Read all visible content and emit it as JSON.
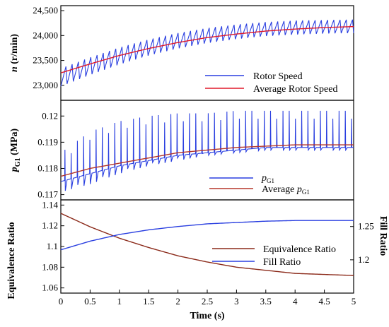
{
  "chart_data": [
    {
      "type": "line",
      "panel": "top",
      "ylabel": "n (r/min)",
      "ylabel_italic_part": "n",
      "ylabel_rest": " (r/min)",
      "ylim": [
        22700,
        24600
      ],
      "xlim": [
        0,
        5
      ],
      "yticks": [
        23000,
        23500,
        24000,
        24500
      ],
      "ytick_labels": [
        "23,000",
        "23,500",
        "24,000",
        "24,500"
      ],
      "legend_position": "lower-right",
      "series": [
        {
          "name": "Rotor Speed",
          "color": "#2a3fe0",
          "style": "oscillating",
          "cycles": 47,
          "x": [
            0,
            0.5,
            1,
            1.5,
            2,
            2.5,
            3,
            3.5,
            4,
            4.5,
            5
          ],
          "y_max": [
            23340,
            23560,
            23760,
            23920,
            24050,
            24150,
            24220,
            24270,
            24300,
            24310,
            24320
          ],
          "y_min": [
            22980,
            23210,
            23420,
            23600,
            23740,
            23850,
            23930,
            23990,
            24020,
            24040,
            24050
          ]
        },
        {
          "name": "Average Rotor Speed",
          "color": "#e0182a",
          "x": [
            0,
            0.5,
            1,
            1.5,
            2,
            2.5,
            3,
            3.5,
            4,
            4.5,
            5
          ],
          "y": [
            23250,
            23430,
            23600,
            23740,
            23860,
            23960,
            24030,
            24090,
            24130,
            24160,
            24180
          ]
        }
      ]
    },
    {
      "type": "line",
      "panel": "middle",
      "ylabel_italic_part": "p",
      "ylabel_sub": "G1",
      "ylabel_rest": " (MPa)",
      "ylim": [
        0.1168,
        0.1206
      ],
      "xlim": [
        0,
        5
      ],
      "yticks": [
        0.117,
        0.118,
        0.119,
        0.12
      ],
      "ytick_labels": [
        "0.117",
        "0.118",
        "0.119",
        "0.12"
      ],
      "legend_position": "lower-right",
      "series": [
        {
          "name_italic": "p",
          "name_sub": "G1",
          "color": "#2a3fe0",
          "style": "spiky",
          "cycles": 47,
          "x": [
            0,
            0.5,
            1,
            1.5,
            2,
            2.5,
            3,
            3.5,
            4,
            4.5,
            5
          ],
          "y_max": [
            0.1186,
            0.1194,
            0.1198,
            0.12,
            0.1201,
            0.1201,
            0.1202,
            0.1202,
            0.1202,
            0.1202,
            0.1202
          ],
          "y_min": [
            0.1171,
            0.1174,
            0.1178,
            0.1181,
            0.1183,
            0.1185,
            0.1186,
            0.1187,
            0.1187,
            0.1187,
            0.1187
          ],
          "baseline": [
            0.1175,
            0.1178,
            0.1181,
            0.1183,
            0.1185,
            0.1186,
            0.1187,
            0.1188,
            0.1188,
            0.1188,
            0.1188
          ]
        },
        {
          "name_prefix": "Average ",
          "name_italic": "p",
          "name_sub": "G1",
          "color": "#b5362a",
          "x": [
            0,
            0.5,
            1,
            1.5,
            2,
            2.5,
            3,
            3.5,
            4,
            4.5,
            5
          ],
          "y": [
            0.1177,
            0.118,
            0.1182,
            0.1184,
            0.1186,
            0.1187,
            0.1188,
            0.11885,
            0.1189,
            0.1189,
            0.1189
          ]
        }
      ]
    },
    {
      "type": "line",
      "panel": "bottom",
      "xlabel": "Time (s)",
      "ylabel": "Equivalence Ratio",
      "ylabel_right": "Fill Ratio",
      "xlim": [
        0,
        5
      ],
      "xticks": [
        0,
        0.5,
        1,
        1.5,
        2,
        2.5,
        3,
        3.5,
        4,
        4.5,
        5
      ],
      "xtick_labels": [
        "0",
        "0.5",
        "1",
        "1.5",
        "2",
        "2.5",
        "3",
        "3.5",
        "4",
        "4.5",
        "5"
      ],
      "ylim": [
        1.055,
        1.145
      ],
      "yticks": [
        1.06,
        1.08,
        1.1,
        1.12,
        1.14
      ],
      "ytick_labels": [
        "1.06",
        "1.08",
        "1.1",
        "1.12",
        "1.14"
      ],
      "ylim_right": [
        1.15,
        1.29
      ],
      "yticks_right": [
        1.2,
        1.25
      ],
      "ytick_labels_right": [
        "1.2",
        "1.25"
      ],
      "legend_position": "center-right",
      "series": [
        {
          "name": "Equivalence Ratio",
          "axis": "left",
          "color": "#8b2a1a",
          "x": [
            0,
            0.5,
            1,
            1.5,
            2,
            2.5,
            3,
            3.5,
            4,
            4.5,
            5
          ],
          "y": [
            1.132,
            1.119,
            1.108,
            1.099,
            1.091,
            1.085,
            1.08,
            1.077,
            1.074,
            1.073,
            1.072
          ]
        },
        {
          "name": "Fill Ratio",
          "axis": "right",
          "color": "#2a3fe0",
          "x": [
            0,
            0.5,
            1,
            1.5,
            2,
            2.5,
            3,
            3.5,
            4,
            4.5,
            5
          ],
          "y": [
            1.215,
            1.228,
            1.238,
            1.245,
            1.25,
            1.254,
            1.256,
            1.258,
            1.259,
            1.259,
            1.259
          ]
        }
      ]
    }
  ]
}
